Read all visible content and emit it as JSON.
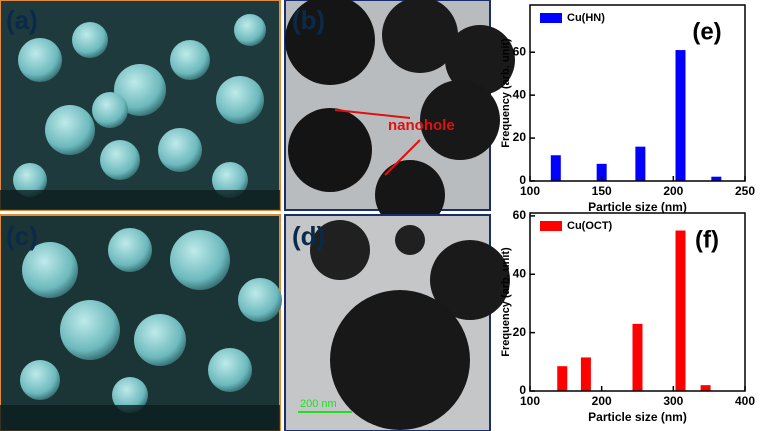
{
  "panels": [
    {
      "label": "(a)"
    },
    {
      "label": "(b)",
      "annotation": "nanohole"
    },
    {
      "label": "(c)"
    },
    {
      "label": "(d)",
      "scale": "200 nm"
    }
  ],
  "chart_data": [
    {
      "type": "bar",
      "annotation": "(e)",
      "xlabel": "Particle size (nm)",
      "ylabel": "Frequency (arb. unit)",
      "x": [
        118,
        150,
        177,
        205,
        230
      ],
      "series": [
        {
          "name": "Cu(HN)",
          "color": "#0000ff",
          "values": [
            12,
            8,
            16,
            61,
            2
          ]
        }
      ],
      "xlim": [
        100,
        250
      ],
      "xticks": [
        100,
        150,
        200,
        250
      ],
      "ylim": [
        0,
        82
      ],
      "yticks": [
        0,
        20,
        40,
        60
      ]
    },
    {
      "type": "bar",
      "annotation": "(f)",
      "xlabel": "Particle size (nm)",
      "ylabel": "Frequency (arb. unit)",
      "x": [
        145,
        178,
        250,
        310,
        345
      ],
      "series": [
        {
          "name": "Cu(OCT)",
          "color": "#ff0000",
          "values": [
            8.5,
            11.5,
            23,
            55,
            2
          ]
        }
      ],
      "xlim": [
        100,
        400
      ],
      "xticks": [
        100,
        200,
        300,
        400
      ],
      "ylim": [
        0,
        61
      ],
      "yticks": [
        0,
        20,
        40,
        60
      ]
    }
  ]
}
